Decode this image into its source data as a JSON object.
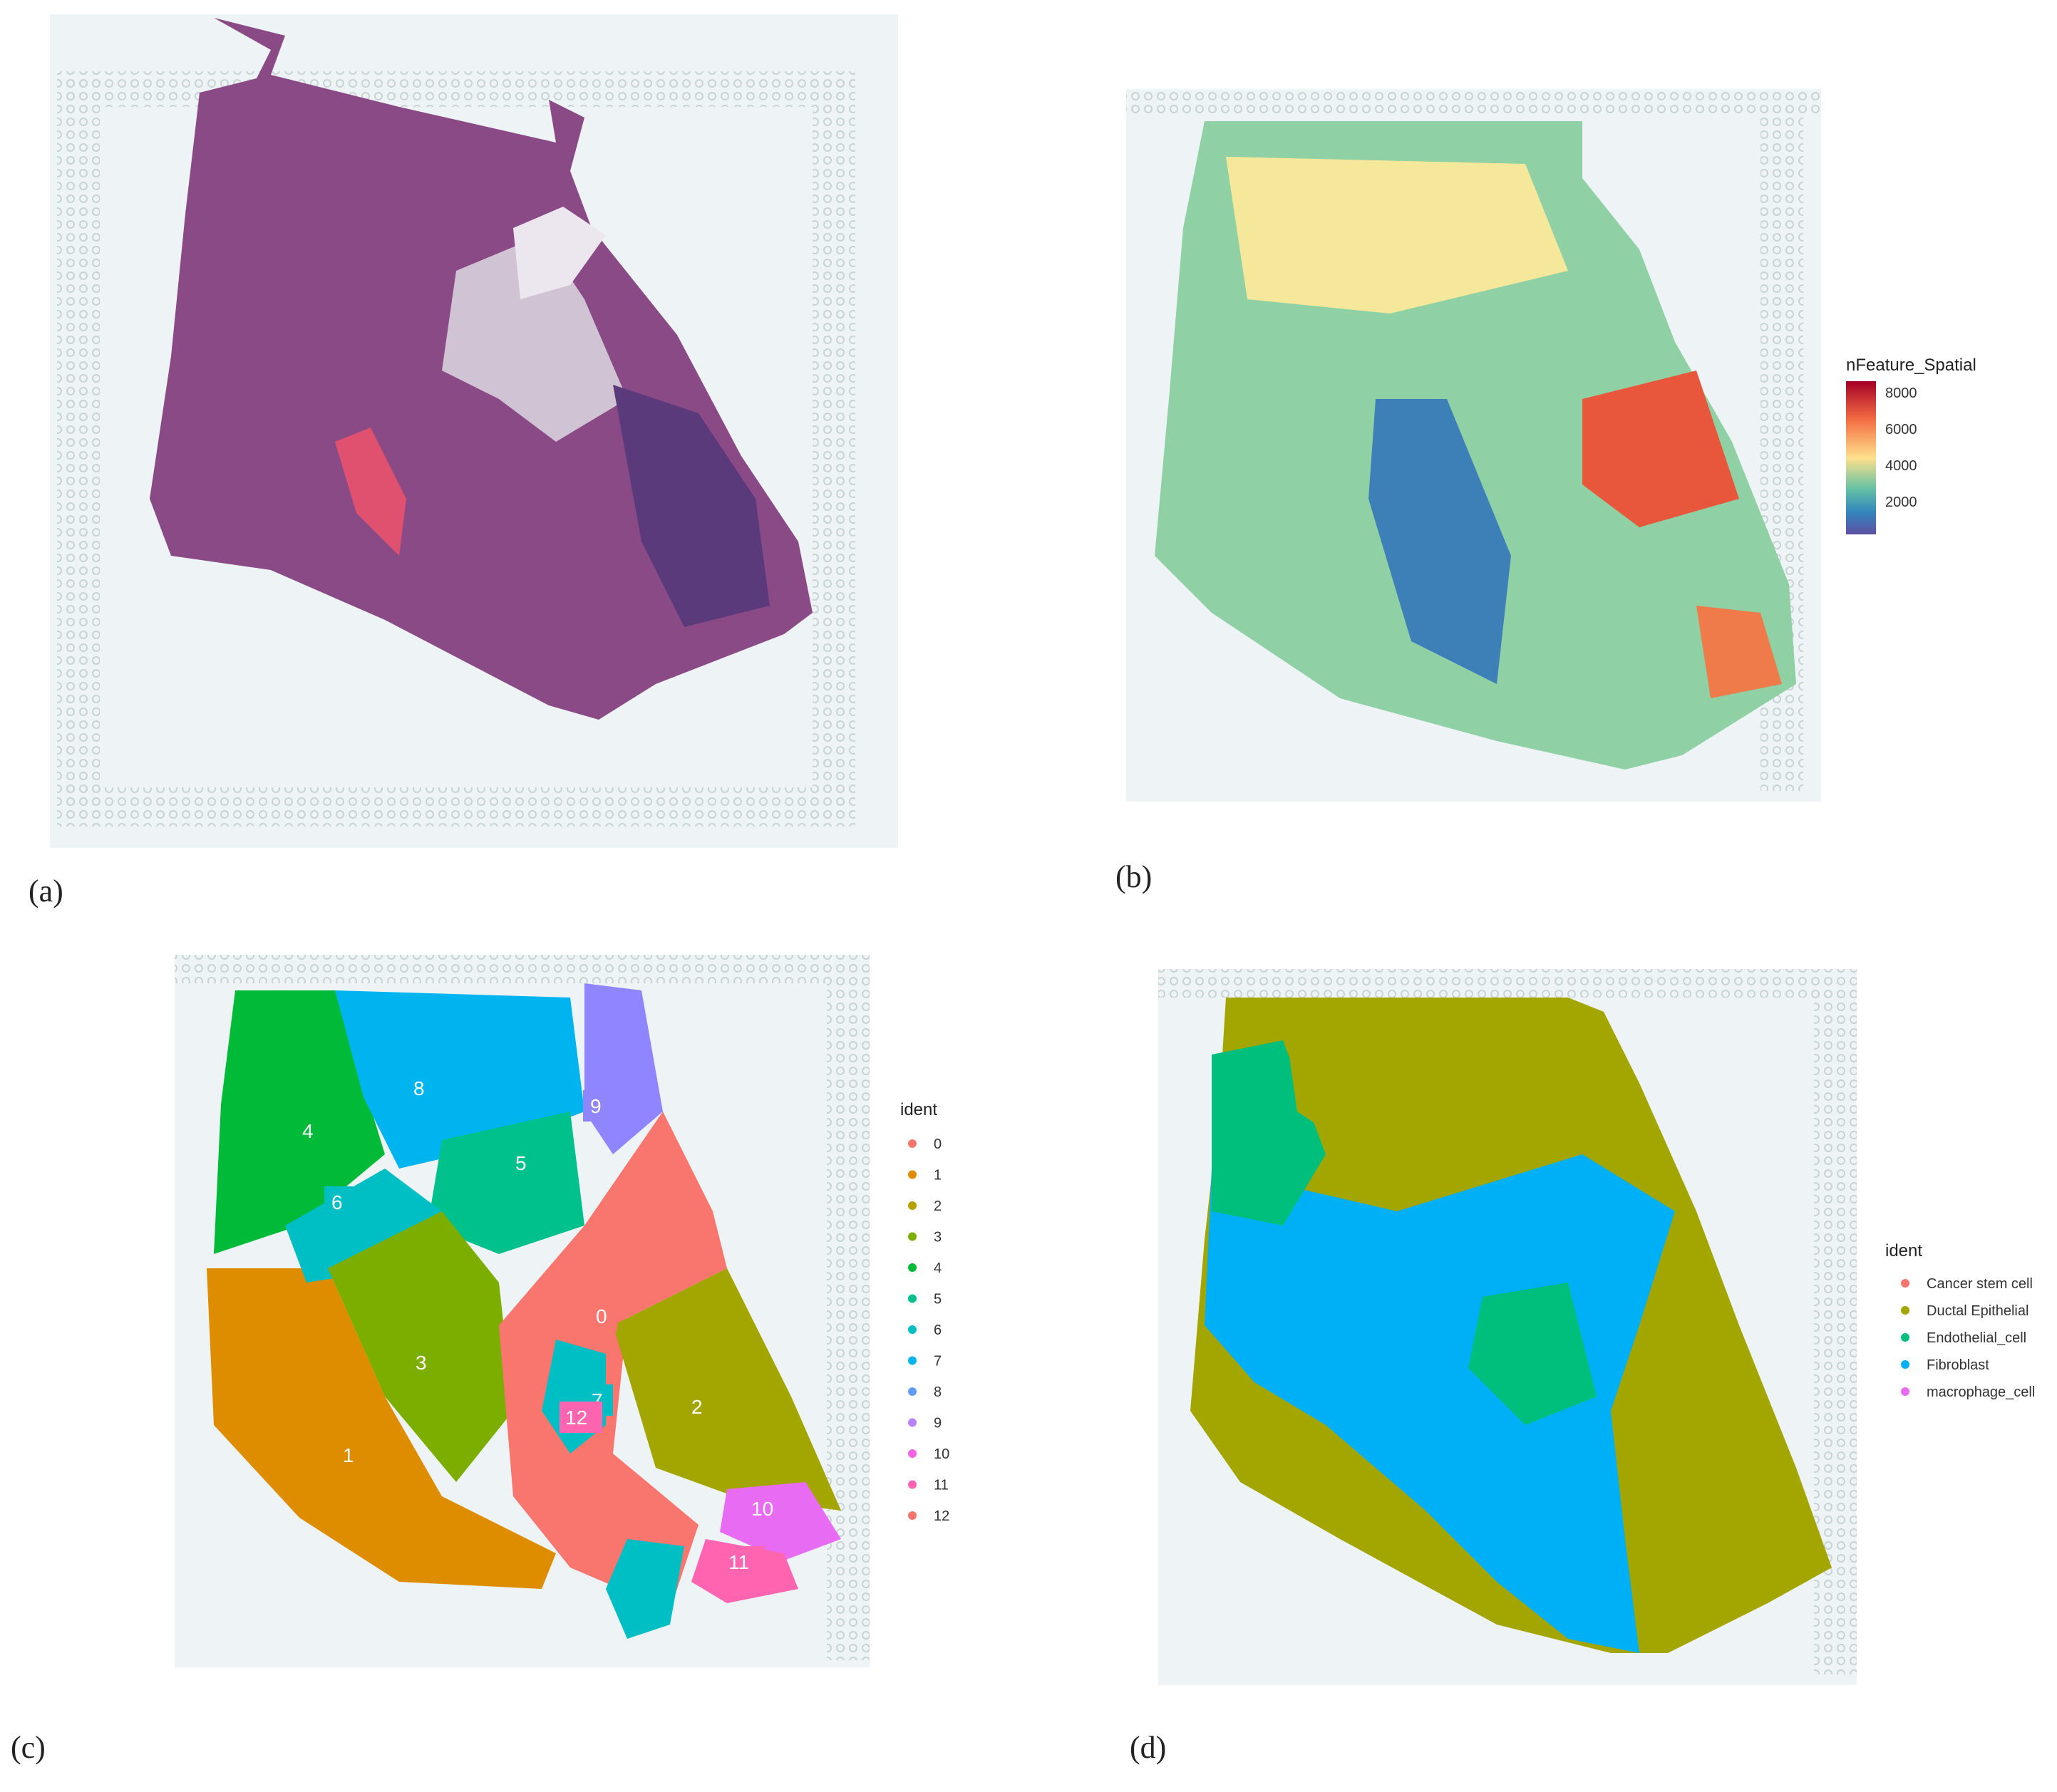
{
  "panels": [
    {
      "id": "a",
      "label": "(a)"
    },
    {
      "id": "b",
      "label": "(b)"
    },
    {
      "id": "c",
      "label": "(c)"
    },
    {
      "id": "d",
      "label": "(d)"
    }
  ],
  "panel_b": {
    "legend_title": "nFeature_Spatial",
    "ticks": [
      "8000",
      "6000",
      "4000",
      "2000"
    ],
    "colors": [
      "#a50026",
      "#f46d43",
      "#fee08b",
      "#66c2a5",
      "#3288bd",
      "#5e4fa2"
    ]
  },
  "panel_c": {
    "legend_title": "ident",
    "entries": [
      {
        "label": "0",
        "color": "#f8766d"
      },
      {
        "label": "1",
        "color": "#de8c00"
      },
      {
        "label": "2",
        "color": "#b79f00"
      },
      {
        "label": "3",
        "color": "#7cae00"
      },
      {
        "label": "4",
        "color": "#00ba38"
      },
      {
        "label": "5",
        "color": "#00c08b"
      },
      {
        "label": "6",
        "color": "#00bfc4"
      },
      {
        "label": "7",
        "color": "#00b4f0"
      },
      {
        "label": "8",
        "color": "#619cff"
      },
      {
        "label": "9",
        "color": "#b983ff"
      },
      {
        "label": "10",
        "color": "#f564e3"
      },
      {
        "label": "11",
        "color": "#ff64b0"
      },
      {
        "label": "12",
        "color": "#f8766d"
      }
    ],
    "cluster_labels": [
      "4",
      "8",
      "9",
      "5",
      "6",
      "0",
      "3",
      "7",
      "12",
      "2",
      "1",
      "10",
      "11"
    ]
  },
  "panel_d": {
    "legend_title": "ident",
    "entries": [
      {
        "label": "Cancer stem cell",
        "color": "#f8766d"
      },
      {
        "label": "Ductal Epithelial",
        "color": "#a3a500"
      },
      {
        "label": "Endothelial_cell",
        "color": "#00bf7d"
      },
      {
        "label": "Fibroblast",
        "color": "#00b0f6"
      },
      {
        "label": "macrophage_cell",
        "color": "#e76bf3"
      }
    ]
  }
}
